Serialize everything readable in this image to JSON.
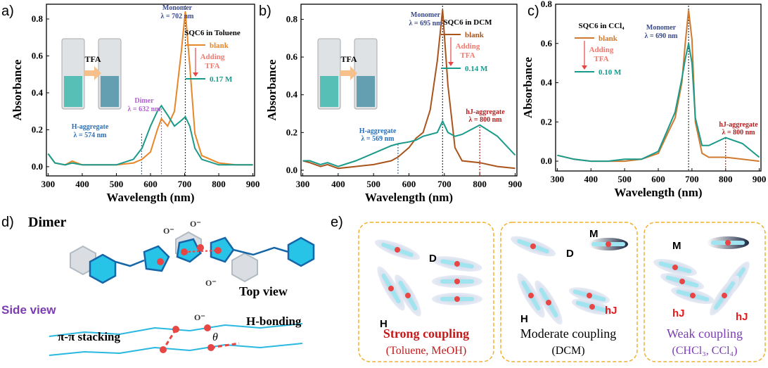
{
  "chart_data": [
    {
      "type": "line",
      "panel_label": "a)",
      "xlabel": "Wavelength (nm)",
      "ylabel": "Absorbance",
      "x": [
        300,
        320,
        350,
        370,
        400,
        450,
        500,
        550,
        575,
        600,
        620,
        632,
        650,
        670,
        690,
        702,
        715,
        730,
        750,
        800,
        850,
        900
      ],
      "series": [
        {
          "name": "blank",
          "color": "#e8862a",
          "values": [
            0.07,
            0.02,
            0.01,
            0.03,
            0.01,
            0.01,
            0.01,
            0.02,
            0.04,
            0.08,
            0.2,
            0.26,
            0.22,
            0.3,
            0.62,
            0.84,
            0.55,
            0.18,
            0.06,
            0.02,
            0.01,
            0.01
          ]
        },
        {
          "name": "0.17 M",
          "color": "#1a9a8a",
          "values": [
            0.07,
            0.02,
            0.01,
            0.02,
            0.01,
            0.01,
            0.01,
            0.04,
            0.1,
            0.22,
            0.3,
            0.33,
            0.28,
            0.22,
            0.25,
            0.27,
            0.22,
            0.1,
            0.04,
            0.01,
            0.01,
            0.01
          ]
        }
      ],
      "legend_title": "SQC6 in Toluene",
      "legend_note": [
        "Adding",
        "TFA"
      ],
      "annotations": [
        "Monomer",
        "λ = 702 nm",
        "Dimer",
        "λ = 632 nm",
        "H-aggregate",
        "λ = 574 nm"
      ],
      "reference_lines": [
        702,
        632,
        574
      ],
      "cuvette_label": "TFA",
      "xlim": [
        295,
        905
      ],
      "xticks": [
        300,
        400,
        500,
        600,
        700,
        800,
        900
      ],
      "ylim": [
        -0.05,
        0.88
      ],
      "yticks": [
        {
          "value": 0,
          "label": "0.0"
        },
        0.2,
        0.4,
        0.6,
        0.8
      ]
    },
    {
      "type": "line",
      "panel_label": "b)",
      "xlabel": "Wavelength (nm)",
      "ylabel": "Absorbance",
      "x": [
        300,
        320,
        350,
        370,
        400,
        450,
        500,
        550,
        569,
        600,
        620,
        640,
        660,
        680,
        695,
        710,
        730,
        750,
        800,
        850,
        900
      ],
      "series": [
        {
          "name": "blank",
          "color": "#a9541c",
          "values": [
            0.05,
            0.04,
            0.02,
            0.03,
            0.01,
            0.02,
            0.03,
            0.05,
            0.07,
            0.12,
            0.17,
            0.2,
            0.32,
            0.58,
            0.85,
            0.45,
            0.12,
            0.05,
            0.04,
            0.02,
            0.01
          ]
        },
        {
          "name": "0.14 M",
          "color": "#1a9a8a",
          "values": [
            0.05,
            0.05,
            0.03,
            0.04,
            0.02,
            0.05,
            0.09,
            0.13,
            0.14,
            0.15,
            0.16,
            0.18,
            0.19,
            0.2,
            0.26,
            0.2,
            0.18,
            0.19,
            0.24,
            0.18,
            0.08
          ]
        }
      ],
      "legend_title": "SQC6 in DCM",
      "legend_note": [
        "Adding",
        "TFA"
      ],
      "annotations": [
        "Monomer",
        "λ = 695 nm",
        "hJ-aggregate",
        "λ = 800 nm",
        "H-aggregate",
        "λ = 569 nm"
      ],
      "reference_lines": [
        695,
        800,
        569
      ],
      "cuvette_label": "TFA",
      "xlim": [
        295,
        905
      ],
      "xticks": [
        300,
        400,
        500,
        600,
        700,
        800,
        900
      ],
      "ylim": [
        -0.03,
        0.88
      ],
      "yticks": [
        {
          "value": 0,
          "label": "0.0"
        },
        0.2,
        0.4,
        0.6,
        0.8
      ]
    },
    {
      "type": "line",
      "panel_label": "c)",
      "xlabel": "Wavelength (nm)",
      "ylabel": "Absorbance",
      "x": [
        300,
        350,
        400,
        450,
        500,
        550,
        600,
        630,
        650,
        670,
        680,
        690,
        700,
        710,
        730,
        750,
        800,
        850,
        900
      ],
      "series": [
        {
          "name": "blank",
          "color": "#d07a30",
          "values": [
            0.03,
            0.01,
            0,
            0,
            0,
            0.01,
            0.04,
            0.15,
            0.22,
            0.4,
            0.6,
            0.77,
            0.62,
            0.2,
            0.04,
            0.02,
            0.02,
            0.01,
            0
          ]
        },
        {
          "name": "0.10 M",
          "color": "#1a9a8a",
          "values": [
            0.03,
            0.01,
            0,
            0,
            0.01,
            0.01,
            0.05,
            0.17,
            0.25,
            0.42,
            0.52,
            0.6,
            0.5,
            0.22,
            0.08,
            0.08,
            0.12,
            0.09,
            0.02
          ]
        }
      ],
      "legend_title": "SQC6 in CCl₄",
      "legend_note": [
        "Adding",
        "TFA"
      ],
      "annotations": [
        "Monomer",
        "λ = 690 nm",
        "hJ-aggregate",
        "λ = 800 nm"
      ],
      "reference_lines": [
        690,
        800
      ],
      "xlim": [
        295,
        905
      ],
      "xticks": [
        300,
        400,
        500,
        600,
        700,
        800,
        900
      ],
      "ylim": [
        -0.05,
        0.8
      ],
      "yticks": [
        {
          "value": 0,
          "label": "0.0"
        },
        0.2,
        0.4,
        0.6,
        0.8
      ]
    }
  ],
  "panel_d": {
    "label": "d)",
    "title": "Dimer",
    "top_view": "Top view",
    "side_view": "Side view",
    "pi_stacking": "π-π stacking",
    "h_bonding": "H-bonding",
    "theta": "θ",
    "oxygen": [
      "O⁻",
      "O⁻",
      "O⁻"
    ]
  },
  "panel_e": {
    "label": "e)",
    "boxes": [
      {
        "species": [
          "D",
          "H"
        ],
        "title": "Strong coupling",
        "solvents": "(Toluene, MeOH)"
      },
      {
        "species": [
          "D",
          "M",
          "hJ",
          "H"
        ],
        "title": "Moderate coupling",
        "solvents": "(DCM)"
      },
      {
        "species": [
          "M",
          "hJ",
          "hJ"
        ],
        "title": "Weak coupling",
        "solvents": "(CHCl₃, CCl₄)"
      }
    ]
  }
}
